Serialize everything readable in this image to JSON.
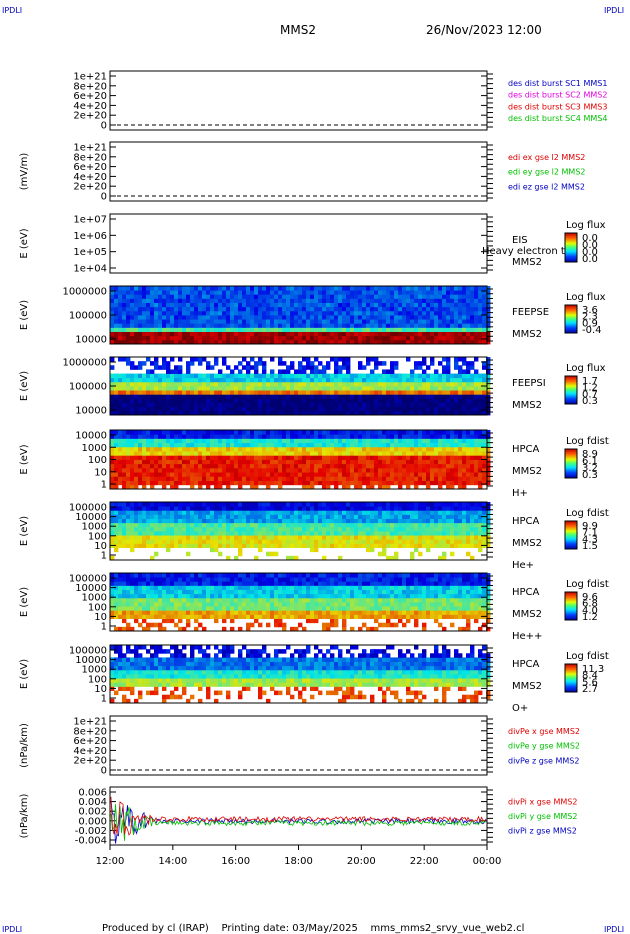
{
  "corner_logo": "IPDLI",
  "header": {
    "spacecraft": "MMS2",
    "datetime": "26/Nov/2023 12:00"
  },
  "footer": {
    "text": "Produced by cl (IRAP)    Printing date: 03/May/2025    mms_mms2_srvy_vue_web2.cl"
  },
  "time_axis": {
    "ticks": [
      "12:00",
      "14:00",
      "16:00",
      "18:00",
      "20:00",
      "22:00",
      "00:00"
    ]
  },
  "colors": {
    "black": "#000000",
    "magenta": "#e000e0",
    "red": "#e00000",
    "green": "#00c000",
    "blue": "#0000c0"
  },
  "chart_data": [
    {
      "type": "line",
      "id": "desdist",
      "ylabel": "",
      "yticks": [
        "1e+21",
        "8e+20",
        "6e+20",
        "4e+20",
        "2e+20",
        "0"
      ],
      "legend": [
        {
          "text": "des dist burst SC1 MMS1",
          "color": "#0000c0"
        },
        {
          "text": "des dist burst SC2 MMS2",
          "color": "#e000e0"
        },
        {
          "text": "des dist burst SC3 MMS3",
          "color": "#e00000"
        },
        {
          "text": "des dist burst SC4 MMS4",
          "color": "#00c000"
        }
      ]
    },
    {
      "type": "line",
      "id": "edi",
      "ylabel": "(mV/m)",
      "yticks": [
        "1e+21",
        "8e+20",
        "6e+20",
        "4e+20",
        "2e+20",
        "0"
      ],
      "legend": [
        {
          "text": "edi ex gse l2 MMS2",
          "color": "#e00000"
        },
        {
          "text": "edi ey gse l2 MMS2",
          "color": "#00c000"
        },
        {
          "text": "edi ez gse l2 MMS2",
          "color": "#0000c0"
        }
      ]
    },
    {
      "type": "heatmap",
      "id": "eis",
      "ylabel": "E (eV)",
      "yticks": [
        "1e+07",
        "1e+06",
        "1e+05",
        "1e+04"
      ],
      "labels": [
        "EIS",
        "MMS2"
      ],
      "overlay": "Heavy electron to",
      "cbar_title": "Log flux",
      "cbar_ticks": [
        "0.0",
        "0.0",
        "0.0",
        "0.0"
      ]
    },
    {
      "type": "heatmap",
      "id": "feepse",
      "ylabel": "E (eV)",
      "yticks": [
        "1000000",
        "100000",
        "10000"
      ],
      "labels": [
        "FEEPSE",
        "MMS2"
      ],
      "cbar_title": "Log flux",
      "cbar_ticks": [
        "3.6",
        "2.3",
        "0.9",
        "-0.4"
      ]
    },
    {
      "type": "heatmap",
      "id": "feepsi",
      "ylabel": "E (eV)",
      "yticks": [
        "1000000",
        "100000",
        "10000"
      ],
      "labels": [
        "FEEPSI",
        "MMS2"
      ],
      "cbar_title": "Log flux",
      "cbar_ticks": [
        "1.7",
        "1.2",
        "0.7",
        "0.3"
      ]
    },
    {
      "type": "heatmap",
      "id": "hpca_h",
      "ylabel": "E (eV)",
      "yticks": [
        "10000",
        "1000",
        "100",
        "10",
        "1"
      ],
      "labels": [
        "HPCA",
        "MMS2",
        "H+"
      ],
      "cbar_title": "Log fdist",
      "cbar_ticks": [
        "8.9",
        "6.1",
        "3.2",
        "0.3"
      ]
    },
    {
      "type": "heatmap",
      "id": "hpca_he",
      "ylabel": "E (eV)",
      "yticks": [
        "100000",
        "10000",
        "1000",
        "100",
        "10",
        "1"
      ],
      "labels": [
        "HPCA",
        "MMS2",
        "He+"
      ],
      "cbar_title": "Log fdist",
      "cbar_ticks": [
        "9.9",
        "7.1",
        "4.3",
        "1.5"
      ]
    },
    {
      "type": "heatmap",
      "id": "hpca_hepp",
      "ylabel": "E (eV)",
      "yticks": [
        "100000",
        "10000",
        "1000",
        "100",
        "10",
        "1"
      ],
      "labels": [
        "HPCA",
        "MMS2",
        "He++"
      ],
      "cbar_title": "Log fdist",
      "cbar_ticks": [
        "9.6",
        "6.8",
        "4.0",
        "1.2"
      ]
    },
    {
      "type": "heatmap",
      "id": "hpca_o",
      "ylabel": "E (eV)",
      "yticks": [
        "100000",
        "10000",
        "1000",
        "100",
        "10",
        "1"
      ],
      "labels": [
        "HPCA",
        "MMS2",
        "O+"
      ],
      "cbar_title": "Log fdist",
      "cbar_ticks": [
        "11.3",
        "8.4",
        "5.6",
        "2.7"
      ]
    },
    {
      "type": "line",
      "id": "divpe",
      "ylabel": "(nPa/km)",
      "yticks": [
        "1e+21",
        "8e+20",
        "6e+20",
        "4e+20",
        "2e+20",
        "0"
      ],
      "legend": [
        {
          "text": "divPe x gse MMS2",
          "color": "#e00000"
        },
        {
          "text": "divPe y gse MMS2",
          "color": "#00c000"
        },
        {
          "text": "divPe z gse MMS2",
          "color": "#0000c0"
        }
      ]
    },
    {
      "type": "line",
      "id": "divpi",
      "ylabel": "(nPa/km)",
      "yticks": [
        "0.006",
        "0.004",
        "0.002",
        "0.000",
        "-0.002",
        "-0.004"
      ],
      "ylim": [
        -0.0045,
        0.0065
      ],
      "legend": [
        {
          "text": "divPi x gse MMS2",
          "color": "#e00000"
        },
        {
          "text": "divPi y gse MMS2",
          "color": "#00c000"
        },
        {
          "text": "divPi z gse MMS2",
          "color": "#0000c0"
        }
      ]
    }
  ]
}
